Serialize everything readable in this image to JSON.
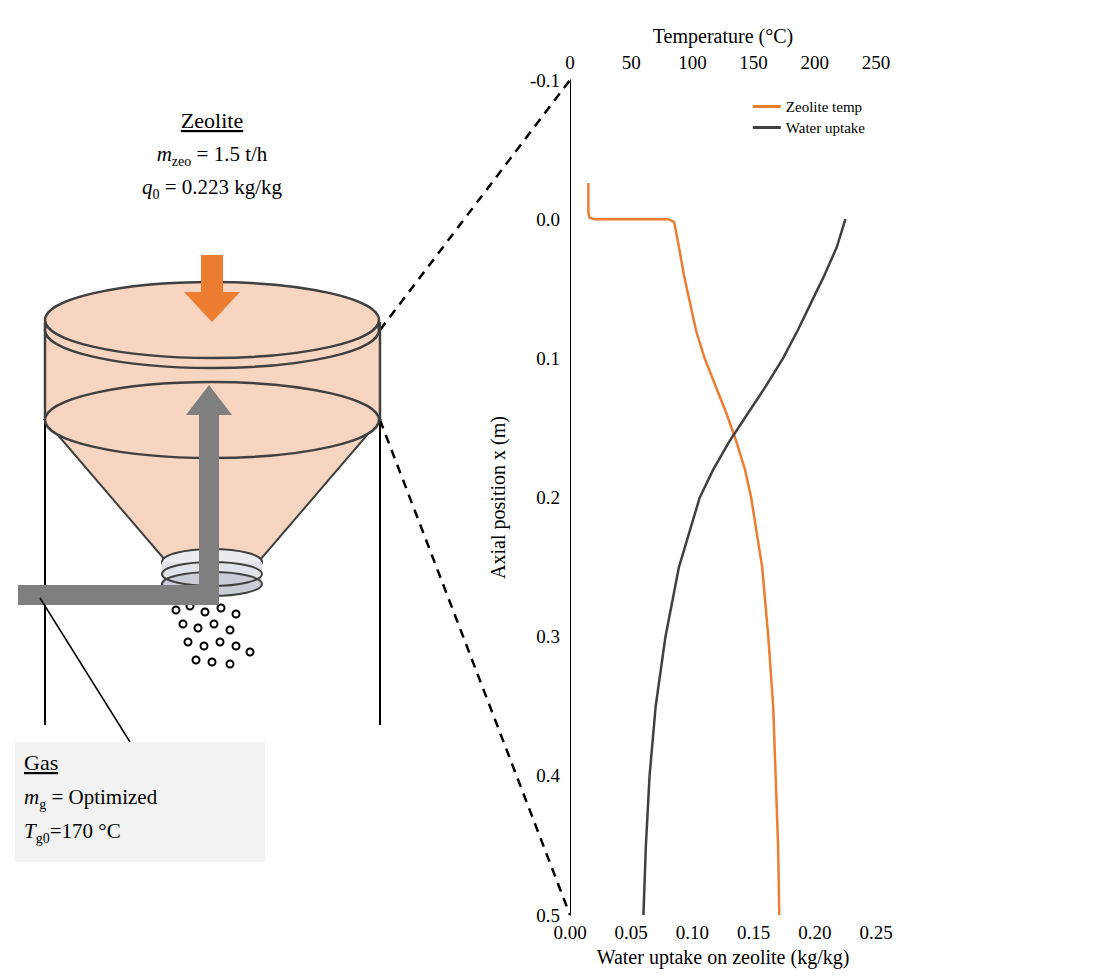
{
  "chart_data": {
    "type": "line",
    "x_label": "Water uptake on zeolite (kg/kg)",
    "x2_label": "Temperature (°C)",
    "y_label": "Axial position x (m)",
    "xlim": [
      0,
      0.25
    ],
    "xticks": [
      {
        "value": 0,
        "label": "0.00"
      },
      {
        "value": 0.05,
        "label": "0.05"
      },
      {
        "value": 0.1,
        "label": "0.10"
      },
      {
        "value": 0.15,
        "label": "0.15"
      },
      {
        "value": 0.2,
        "label": "0.20"
      },
      {
        "value": 0.25,
        "label": "0.25"
      }
    ],
    "x2lim": [
      0,
      250
    ],
    "x2ticks": [
      0,
      50,
      100,
      150,
      200,
      250
    ],
    "ylim": [
      0.5,
      -0.1
    ],
    "yticks": [
      -0.1,
      {
        "value": 0,
        "label": "0.0"
      },
      0.1,
      0.2,
      0.3,
      0.4,
      0.5
    ],
    "grid": false,
    "legend": "upper right",
    "series": [
      {
        "name": "Zeolite temp",
        "color": "#ED7D31",
        "axis": "x2",
        "x": [
          15,
          15,
          16,
          20,
          80,
          85,
          86,
          89,
          93,
          98,
          103,
          110,
          119,
          128,
          136,
          143,
          148,
          157,
          162,
          166,
          168,
          170,
          171
        ],
        "y": [
          -0.026,
          -0.005,
          -0.001,
          0.0,
          0.0,
          0.002,
          0.006,
          0.02,
          0.04,
          0.06,
          0.08,
          0.1,
          0.12,
          0.14,
          0.16,
          0.18,
          0.2,
          0.25,
          0.3,
          0.35,
          0.4,
          0.45,
          0.5
        ]
      },
      {
        "name": "Water uptake",
        "color": "#404040",
        "axis": "x",
        "x": [
          0.225,
          0.218,
          0.208,
          0.197,
          0.186,
          0.174,
          0.16,
          0.145,
          0.13,
          0.117,
          0.106,
          0.089,
          0.078,
          0.07,
          0.065,
          0.062,
          0.06
        ],
        "y": [
          0.0,
          0.02,
          0.04,
          0.06,
          0.08,
          0.1,
          0.12,
          0.14,
          0.16,
          0.18,
          0.2,
          0.25,
          0.3,
          0.35,
          0.4,
          0.45,
          0.5
        ]
      }
    ]
  },
  "diagram": {
    "feed": {
      "title": "Zeolite",
      "lines": [
        {
          "symbol": "m",
          "sub": "zeo",
          "rest": " = 1.5 t/h"
        },
        {
          "symbol": "q",
          "sub": "0",
          "rest": " = 0.223 kg/kg"
        }
      ]
    },
    "gas": {
      "title": "Gas",
      "lines": [
        {
          "symbol": "m",
          "sub": "g",
          "rest": " = Optimized"
        },
        {
          "symbol": "T",
          "sub": "g0",
          "rest": "=170 °C"
        }
      ]
    }
  }
}
